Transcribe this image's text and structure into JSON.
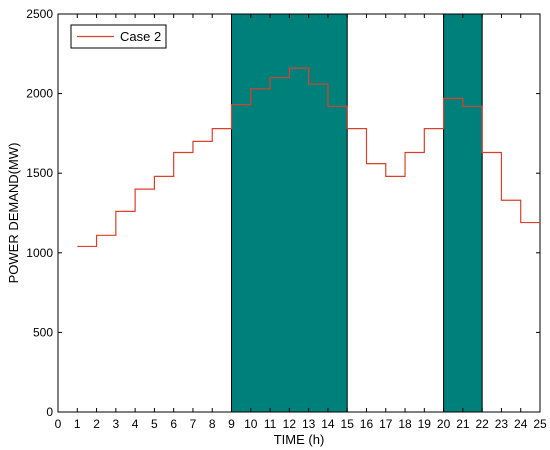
{
  "chart_data": {
    "type": "line",
    "step": true,
    "title": "",
    "xlabel": "TIME (h)",
    "ylabel": "POWER DEMAND(MW)",
    "xlim": [
      0,
      25
    ],
    "ylim": [
      0,
      2500
    ],
    "xticks": [
      0,
      1,
      2,
      3,
      4,
      5,
      6,
      7,
      8,
      9,
      10,
      11,
      12,
      13,
      14,
      15,
      16,
      17,
      18,
      19,
      20,
      21,
      22,
      23,
      24,
      25
    ],
    "yticks": [
      0,
      500,
      1000,
      1500,
      2000,
      2500
    ],
    "grid": false,
    "legend": {
      "position": "top-left",
      "entries": [
        "Case 2"
      ]
    },
    "series": [
      {
        "name": "Case 2",
        "color": "#d9412b",
        "x": [
          1,
          2,
          3,
          4,
          5,
          6,
          7,
          8,
          9,
          10,
          11,
          12,
          13,
          14,
          15,
          16,
          17,
          18,
          19,
          20,
          21,
          22,
          23,
          24
        ],
        "values": [
          1040,
          1110,
          1260,
          1400,
          1480,
          1630,
          1700,
          1780,
          1930,
          2030,
          2100,
          2160,
          2060,
          1920,
          1780,
          1560,
          1480,
          1630,
          1780,
          1970,
          1920,
          1630,
          1330,
          1190
        ]
      }
    ],
    "shaded_regions": [
      {
        "x0": 9,
        "x1": 15,
        "color": "#00807a"
      },
      {
        "x0": 20,
        "x1": 22,
        "color": "#00807a"
      }
    ]
  }
}
